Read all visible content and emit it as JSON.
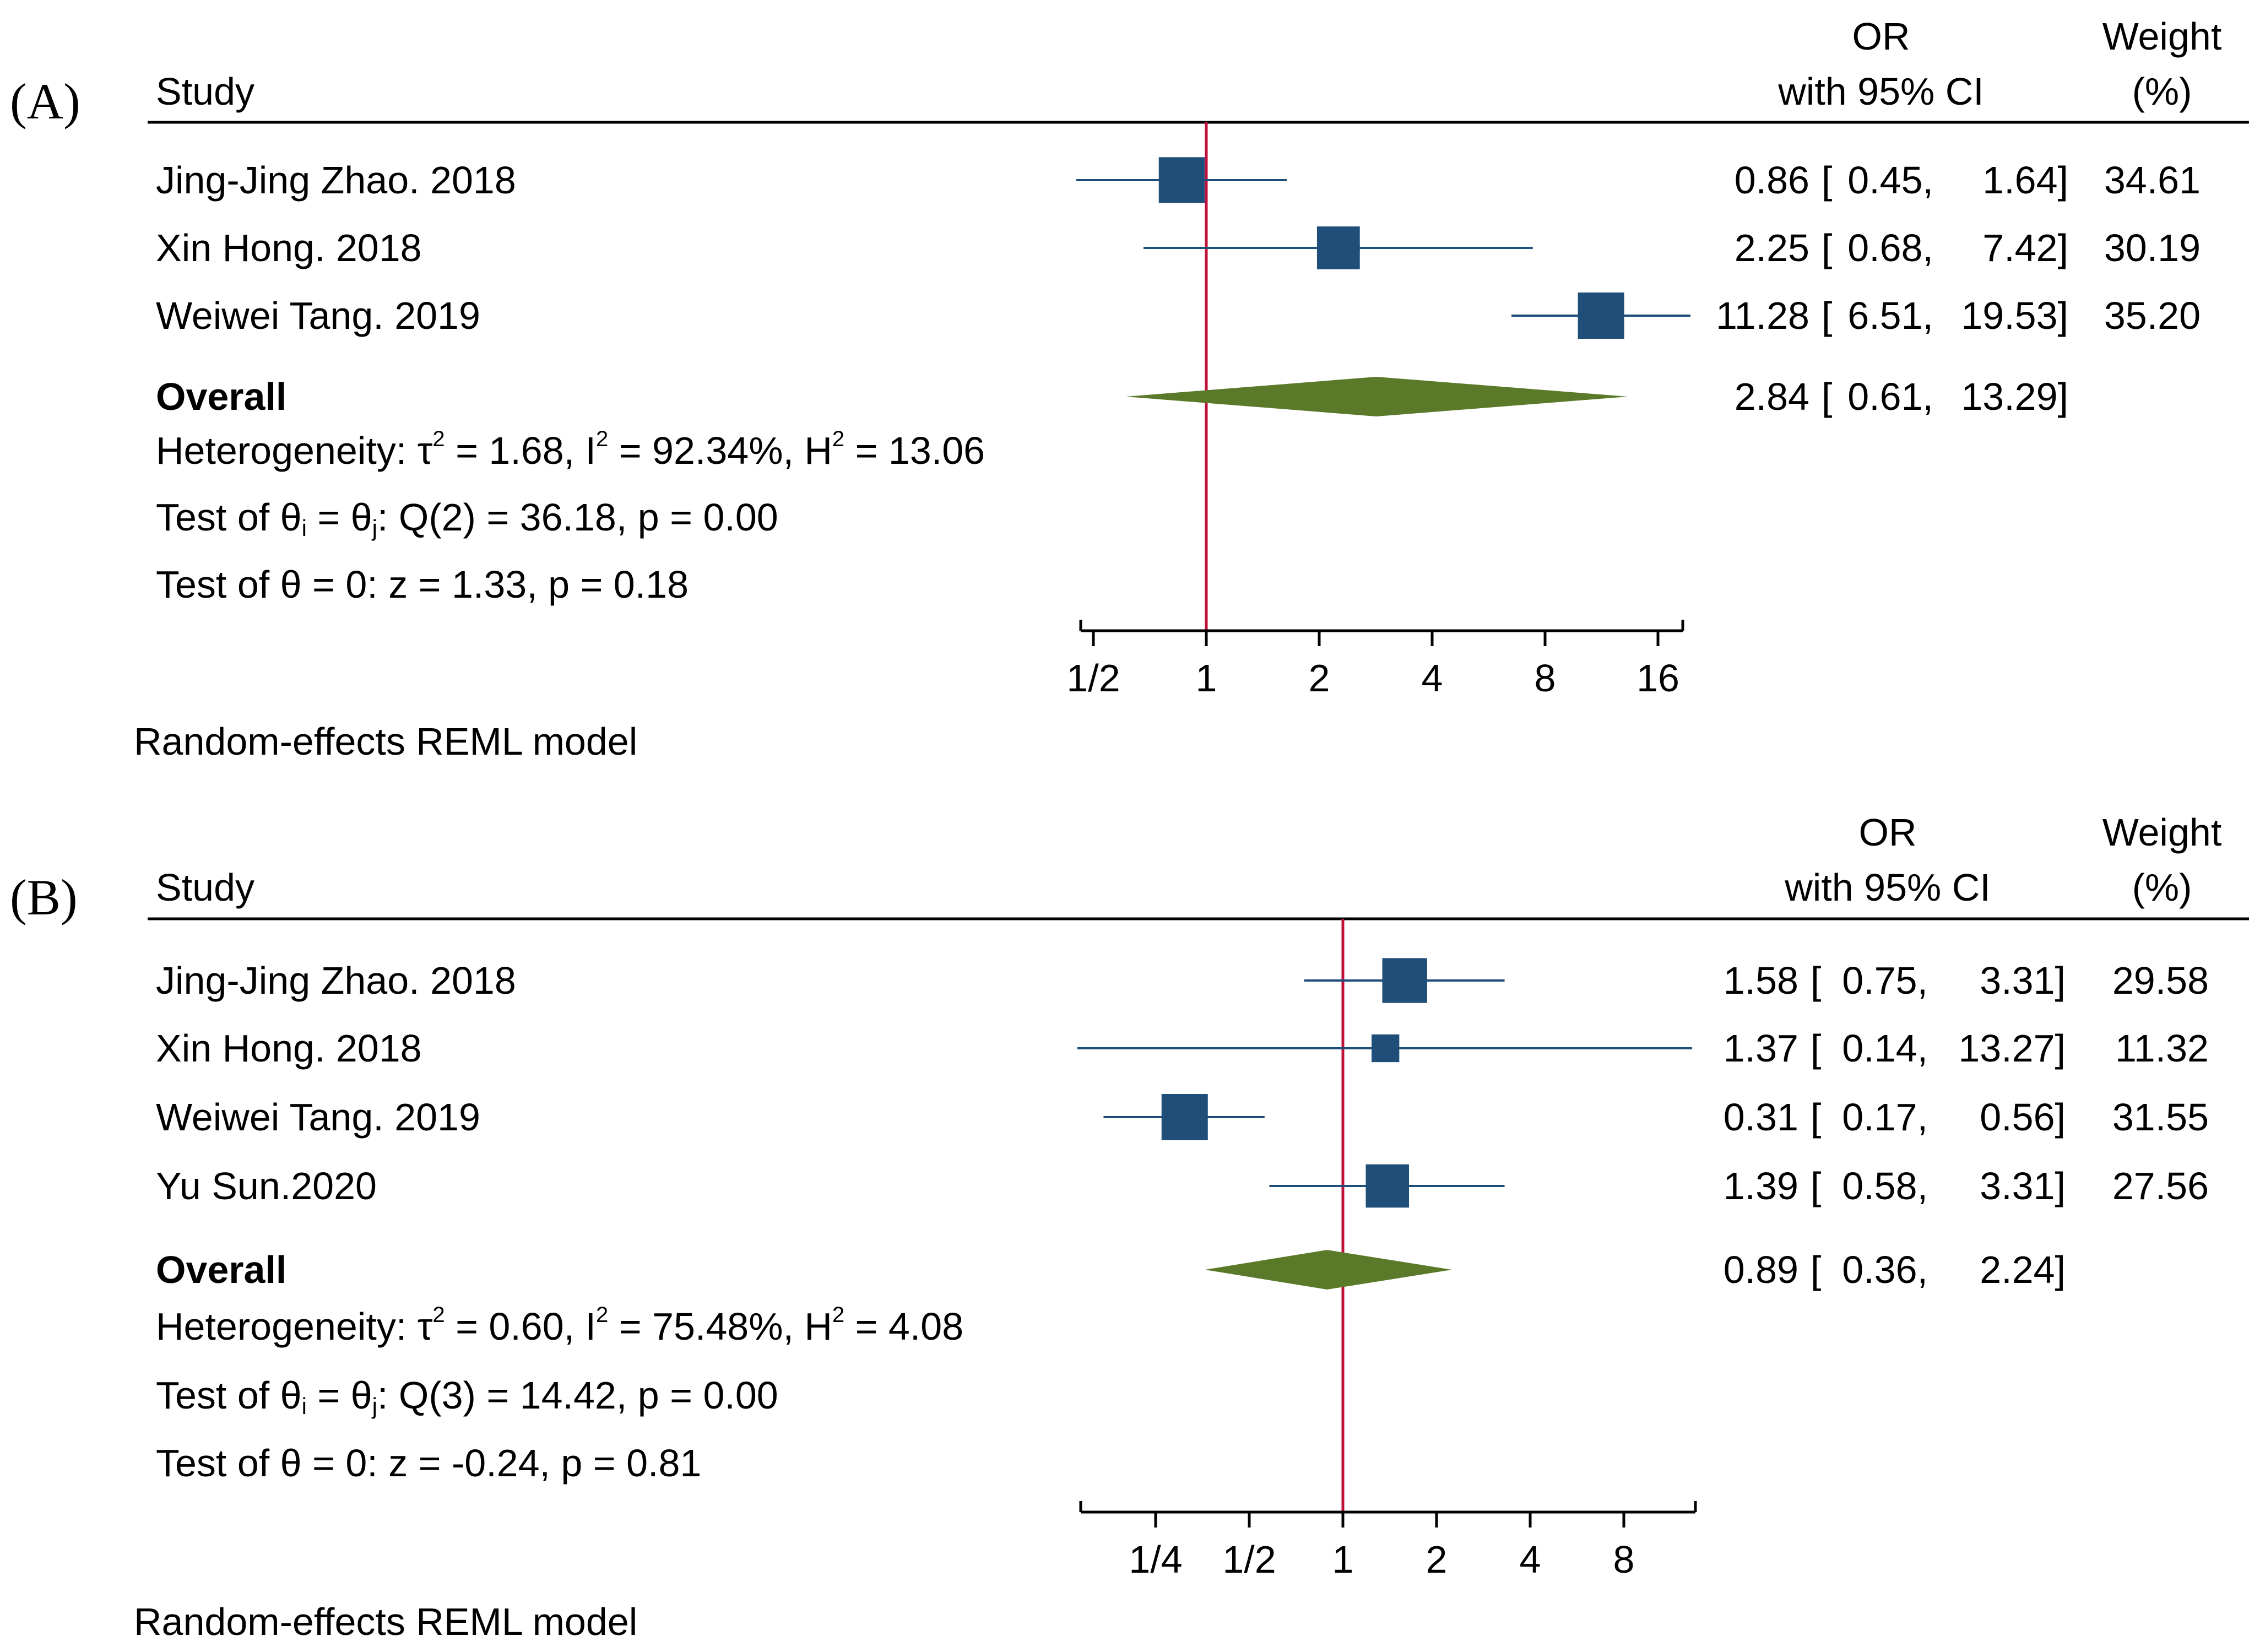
{
  "chart_data": [
    {
      "type": "forest",
      "panel_label": "(A)",
      "header": {
        "study": "Study",
        "or_top": "OR",
        "or_bottom": "with 95% CI",
        "weight_top": "Weight",
        "weight_bottom": "(%)"
      },
      "xscale": "log2",
      "xlim": [
        0.4,
        22
      ],
      "xticks": [
        {
          "value": 0.5,
          "label": "1/2"
        },
        {
          "value": 1,
          "label": "1"
        },
        {
          "value": 2,
          "label": "2"
        },
        {
          "value": 4,
          "label": "4"
        },
        {
          "value": 8,
          "label": "8"
        },
        {
          "value": 16,
          "label": "16"
        }
      ],
      "reference_line": 1,
      "studies": [
        {
          "name": "Jing-Jing Zhao. 2018",
          "or": 0.86,
          "lo": 0.45,
          "hi": 1.64,
          "weight": 34.61,
          "t_or": "0.86",
          "t_lo": "0.45,",
          "t_hi": "1.64]",
          "t_w": "34.61"
        },
        {
          "name": "Xin Hong.  2018",
          "or": 2.25,
          "lo": 0.68,
          "hi": 7.42,
          "weight": 30.19,
          "t_or": "2.25",
          "t_lo": "0.68,",
          "t_hi": "7.42]",
          "t_w": "30.19"
        },
        {
          "name": "Weiwei Tang. 2019",
          "or": 11.28,
          "lo": 6.51,
          "hi": 19.53,
          "weight": 35.2,
          "t_or": "11.28",
          "t_lo": "6.51,",
          "t_hi": "19.53]",
          "t_w": "35.20"
        }
      ],
      "overall": {
        "label": "Overall",
        "or": 2.84,
        "lo": 0.61,
        "hi": 13.29,
        "t_or": "2.84",
        "t_lo": "0.61,",
        "t_hi": "13.29]"
      },
      "heterogeneity": {
        "prefix": "Heterogeneity: τ",
        "tau2": " = 1.68, I",
        "i2": " = 92.34%, H",
        "h2": " = 13.06"
      },
      "test_q": {
        "a": "Test of θ",
        "b": " = θ",
        "c": ": Q(2) = 36.18, p = 0.00"
      },
      "test_z": "Test of θ = 0: z = 1.33, p = 0.18",
      "model": "Random-effects REML model",
      "colors": {
        "box": "#1f4e79",
        "ci": "#1f4e79",
        "diamond": "#5a7a2a",
        "ref": "#c0103a",
        "axis": "#000000"
      }
    },
    {
      "type": "forest",
      "panel_label": "(B)",
      "header": {
        "study": "Study",
        "or_top": "OR",
        "or_bottom": "with 95% CI",
        "weight_top": "Weight",
        "weight_bottom": "(%)"
      },
      "xscale": "log2",
      "xlim": [
        0.14,
        13.3
      ],
      "xticks": [
        {
          "value": 0.25,
          "label": "1/4"
        },
        {
          "value": 0.5,
          "label": "1/2"
        },
        {
          "value": 1,
          "label": "1"
        },
        {
          "value": 2,
          "label": "2"
        },
        {
          "value": 4,
          "label": "4"
        },
        {
          "value": 8,
          "label": "8"
        }
      ],
      "reference_line": 1,
      "studies": [
        {
          "name": "Jing-Jing Zhao. 2018",
          "or": 1.58,
          "lo": 0.75,
          "hi": 3.31,
          "weight": 29.58,
          "t_or": "1.58",
          "t_lo": "0.75,",
          "t_hi": "3.31]",
          "t_w": "29.58"
        },
        {
          "name": "Xin Hong.  2018",
          "or": 1.37,
          "lo": 0.14,
          "hi": 13.27,
          "weight": 11.32,
          "t_or": "1.37",
          "t_lo": "0.14,",
          "t_hi": "13.27]",
          "t_w": "11.32"
        },
        {
          "name": "Weiwei Tang. 2019",
          "or": 0.31,
          "lo": 0.17,
          "hi": 0.56,
          "weight": 31.55,
          "t_or": "0.31",
          "t_lo": "0.17,",
          "t_hi": "0.56]",
          "t_w": "31.55"
        },
        {
          "name": "Yu Sun.2020",
          "or": 1.39,
          "lo": 0.58,
          "hi": 3.31,
          "weight": 27.56,
          "t_or": "1.39",
          "t_lo": "0.58,",
          "t_hi": "3.31]",
          "t_w": "27.56"
        }
      ],
      "overall": {
        "label": "Overall",
        "or": 0.89,
        "lo": 0.36,
        "hi": 2.24,
        "t_or": "0.89",
        "t_lo": "0.36,",
        "t_hi": "2.24]"
      },
      "heterogeneity": {
        "prefix": "Heterogeneity: τ",
        "tau2": " = 0.60, I",
        "i2": " = 75.48%, H",
        "h2": " = 4.08"
      },
      "test_q": {
        "a": "Test of θ",
        "b": " = θ",
        "c": ": Q(3) = 14.42, p = 0.00"
      },
      "test_z": "Test of θ = 0: z = -0.24, p = 0.81",
      "model": "Random-effects REML model",
      "colors": {
        "box": "#1f4e79",
        "ci": "#1f4e79",
        "diamond": "#5a7a2a",
        "ref": "#c0103a",
        "axis": "#000000"
      }
    }
  ],
  "bracket_open": "[",
  "superscript_two": "2",
  "sub_i": "i",
  "sub_j": "j"
}
